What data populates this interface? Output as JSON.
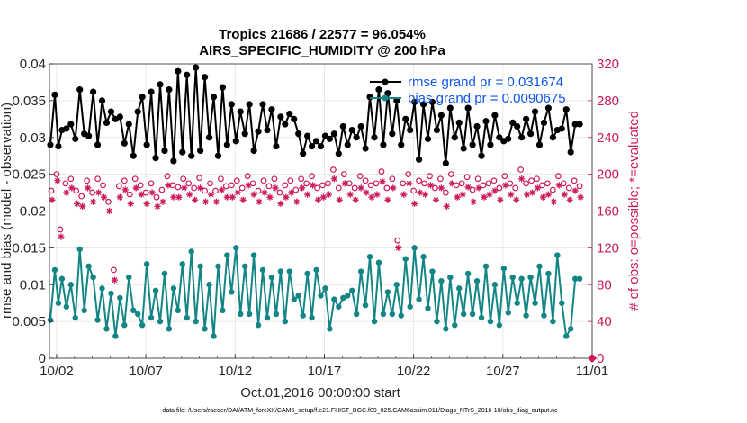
{
  "chart_data": {
    "type": "line",
    "title": "Tropics 21686 / 22577 = 96.054%",
    "subtitle": "AIRS_SPECIFIC_HUMIDITY @ 200 hPa",
    "xlabel": "Oct.01,2016 00:00:00 start",
    "ylabel": "rmse and bias (model - observation)",
    "ylabel_right": "# of obs: o=possible; *=evaluated",
    "xlim": [
      0.6,
      31.0
    ],
    "ylim": [
      0,
      0.04
    ],
    "ylim_right": [
      0,
      320
    ],
    "x_ticks": [
      1,
      6,
      11,
      16,
      21,
      26,
      31
    ],
    "x_tick_labels": [
      "10/02",
      "10/07",
      "10/12",
      "10/17",
      "10/22",
      "10/27",
      "11/01"
    ],
    "y_ticks": [
      0,
      0.005,
      0.01,
      0.015,
      0.02,
      0.025,
      0.03,
      0.035,
      0.04
    ],
    "y_tick_labels": [
      "0",
      "0.005",
      "0.01",
      "0.015",
      "0.02",
      "0.025",
      "0.03",
      "0.035",
      "0.04"
    ],
    "y_ticks_right": [
      0,
      40,
      80,
      120,
      160,
      200,
      240,
      280,
      320
    ],
    "y_tick_labels_right": [
      "0",
      "40",
      "80",
      "120",
      "160",
      "200",
      "240",
      "280",
      "320"
    ],
    "grid": true,
    "legend_position": "top-right",
    "series": [
      {
        "name": "rmse grand pr = 0.031674",
        "axis": "left",
        "color": "#000000",
        "marker": "hexagram",
        "x": [
          0.65,
          0.9,
          1.1,
          1.3,
          1.55,
          1.8,
          2.05,
          2.3,
          2.55,
          2.8,
          3.05,
          3.3,
          3.55,
          3.8,
          4.05,
          4.3,
          4.55,
          4.8,
          5.05,
          5.3,
          5.55,
          5.8,
          6.05,
          6.3,
          6.55,
          6.8,
          7.05,
          7.3,
          7.55,
          7.8,
          8.05,
          8.3,
          8.55,
          8.8,
          9.05,
          9.3,
          9.55,
          9.8,
          10.05,
          10.3,
          10.55,
          10.8,
          11.05,
          11.3,
          11.55,
          11.8,
          12.05,
          12.3,
          12.55,
          12.8,
          13.05,
          13.3,
          13.55,
          13.8,
          14.05,
          14.3,
          14.55,
          14.8,
          15.05,
          15.3,
          15.55,
          15.8,
          16.05,
          16.3,
          16.55,
          16.8,
          17.05,
          17.3,
          17.55,
          17.8,
          18.05,
          18.3,
          18.55,
          18.8,
          19.05,
          19.3,
          19.55,
          19.8,
          20.05,
          20.3,
          20.55,
          20.8,
          21.05,
          21.3,
          21.55,
          21.8,
          22.05,
          22.3,
          22.55,
          22.8,
          23.05,
          23.3,
          23.55,
          23.8,
          24.05,
          24.3,
          24.55,
          24.8,
          25.05,
          25.3,
          25.55,
          25.8,
          26.05,
          26.3,
          26.55,
          26.8,
          27.05,
          27.3,
          27.55,
          27.8,
          28.05,
          28.3,
          28.55,
          28.8,
          29.05,
          29.3,
          29.55,
          29.8,
          30.05,
          30.3
        ],
        "values": [
          0.029,
          0.0358,
          0.0288,
          0.031,
          0.0312,
          0.0318,
          0.0298,
          0.0365,
          0.0305,
          0.0302,
          0.0362,
          0.029,
          0.035,
          0.032,
          0.0335,
          0.0325,
          0.0328,
          0.0292,
          0.0318,
          0.0275,
          0.0335,
          0.0355,
          0.029,
          0.0362,
          0.0272,
          0.0372,
          0.0282,
          0.0365,
          0.0268,
          0.039,
          0.028,
          0.0385,
          0.0275,
          0.0395,
          0.0282,
          0.0382,
          0.03,
          0.0355,
          0.0275,
          0.0368,
          0.029,
          0.0345,
          0.0295,
          0.0335,
          0.0305,
          0.0345,
          0.0282,
          0.0308,
          0.0345,
          0.031,
          0.0338,
          0.0288,
          0.0328,
          0.0318,
          0.0332,
          0.0325,
          0.0305,
          0.0278,
          0.0302,
          0.0288,
          0.0295,
          0.0288,
          0.0302,
          0.0298,
          0.0305,
          0.0278,
          0.0315,
          0.029,
          0.031,
          0.03,
          0.0315,
          0.0285,
          0.0355,
          0.03,
          0.0365,
          0.029,
          0.036,
          0.0305,
          0.035,
          0.029,
          0.0325,
          0.031,
          0.0348,
          0.027,
          0.0345,
          0.0298,
          0.0348,
          0.031,
          0.033,
          0.0265,
          0.034,
          0.03,
          0.032,
          0.0285,
          0.034,
          0.029,
          0.0315,
          0.0275,
          0.0322,
          0.029,
          0.033,
          0.03,
          0.0295,
          0.0298,
          0.032,
          0.0315,
          0.03,
          0.0325,
          0.0305,
          0.0335,
          0.029,
          0.032,
          0.034,
          0.03,
          0.031,
          0.0312,
          0.0338,
          0.028,
          0.0318,
          0.0318
        ]
      },
      {
        "name": "bias grand pr = 0.0090675",
        "axis": "left",
        "color": "#138585",
        "marker": "circle",
        "x": [
          0.65,
          0.9,
          1.1,
          1.3,
          1.55,
          1.8,
          2.05,
          2.3,
          2.55,
          2.8,
          3.05,
          3.3,
          3.55,
          3.8,
          4.05,
          4.3,
          4.55,
          4.8,
          5.05,
          5.3,
          5.55,
          5.8,
          6.05,
          6.3,
          6.55,
          6.8,
          7.05,
          7.3,
          7.55,
          7.8,
          8.05,
          8.3,
          8.55,
          8.8,
          9.05,
          9.3,
          9.55,
          9.8,
          10.05,
          10.3,
          10.55,
          10.8,
          11.05,
          11.3,
          11.55,
          11.8,
          12.05,
          12.3,
          12.55,
          12.8,
          13.05,
          13.3,
          13.55,
          13.8,
          14.05,
          14.3,
          14.55,
          14.8,
          15.05,
          15.3,
          15.55,
          15.8,
          16.05,
          16.3,
          16.55,
          16.8,
          17.05,
          17.3,
          17.55,
          17.8,
          18.05,
          18.3,
          18.55,
          18.8,
          19.05,
          19.3,
          19.55,
          19.8,
          20.05,
          20.3,
          20.55,
          20.8,
          21.05,
          21.3,
          21.55,
          21.8,
          22.05,
          22.3,
          22.55,
          22.8,
          23.05,
          23.3,
          23.55,
          23.8,
          24.05,
          24.3,
          24.55,
          24.8,
          25.05,
          25.3,
          25.55,
          25.8,
          26.05,
          26.3,
          26.55,
          26.8,
          27.05,
          27.3,
          27.55,
          27.8,
          28.05,
          28.3,
          28.55,
          28.8,
          29.05,
          29.3,
          29.55,
          29.8,
          30.05,
          30.3
        ],
        "values": [
          0.0052,
          0.012,
          0.0075,
          0.0108,
          0.007,
          0.01,
          0.0055,
          0.0148,
          0.0065,
          0.0125,
          0.011,
          0.0052,
          0.0095,
          0.004,
          0.0088,
          0.003,
          0.0082,
          0.0045,
          0.011,
          0.0065,
          0.006,
          0.0045,
          0.0128,
          0.0055,
          0.0092,
          0.005,
          0.0115,
          0.004,
          0.0095,
          0.0065,
          0.0128,
          0.0055,
          0.0145,
          0.005,
          0.0125,
          0.004,
          0.01,
          0.003,
          0.0125,
          0.0065,
          0.014,
          0.009,
          0.015,
          0.006,
          0.0125,
          0.006,
          0.014,
          0.0045,
          0.012,
          0.0055,
          0.011,
          0.006,
          0.0118,
          0.005,
          0.0118,
          0.008,
          0.0085,
          0.0058,
          0.0115,
          0.0055,
          0.012,
          0.0085,
          0.0095,
          0.004,
          0.008,
          0.007,
          0.0082,
          0.0085,
          0.0092,
          0.006,
          0.0118,
          0.0072,
          0.0138,
          0.005,
          0.013,
          0.006,
          0.009,
          0.006,
          0.01,
          0.0058,
          0.0135,
          0.007,
          0.015,
          0.008,
          0.0138,
          0.0068,
          0.0118,
          0.005,
          0.0105,
          0.004,
          0.011,
          0.0045,
          0.0095,
          0.006,
          0.0115,
          0.006,
          0.0105,
          0.0055,
          0.0125,
          0.005,
          0.01,
          0.0045,
          0.0122,
          0.0062,
          0.011,
          0.0075,
          0.0108,
          0.0058,
          0.011,
          0.0075,
          0.0125,
          0.0058,
          0.0115,
          0.005,
          0.014,
          0.0075,
          0.003,
          0.004,
          0.0108,
          0.0108
        ]
      },
      {
        "name": "possible obs",
        "axis": "right",
        "color": "#cc1a5c",
        "marker": "open-circle",
        "x": [
          0.7,
          1.0,
          1.2,
          1.5,
          1.8,
          2.1,
          2.4,
          2.7,
          3.0,
          3.3,
          3.6,
          3.9,
          4.2,
          4.5,
          4.8,
          5.1,
          5.4,
          5.7,
          6.0,
          6.3,
          6.6,
          6.9,
          7.2,
          7.5,
          7.8,
          8.1,
          8.4,
          8.7,
          9.0,
          9.3,
          9.6,
          9.9,
          10.2,
          10.5,
          10.8,
          11.1,
          11.4,
          11.7,
          12.0,
          12.3,
          12.6,
          12.9,
          13.2,
          13.5,
          13.8,
          14.1,
          14.4,
          14.7,
          15.0,
          15.3,
          15.6,
          15.9,
          16.2,
          16.5,
          16.8,
          17.1,
          17.4,
          17.7,
          18.0,
          18.3,
          18.6,
          18.9,
          19.2,
          19.5,
          19.8,
          20.1,
          20.4,
          20.7,
          21.0,
          21.3,
          21.6,
          21.9,
          22.2,
          22.5,
          22.8,
          23.1,
          23.4,
          23.7,
          24.0,
          24.3,
          24.6,
          24.9,
          25.2,
          25.5,
          25.8,
          26.1,
          26.4,
          26.7,
          27.0,
          27.3,
          27.6,
          27.9,
          28.2,
          28.5,
          28.8,
          29.1,
          29.4,
          29.7,
          30.0,
          30.3
        ],
        "values": [
          182,
          200,
          140,
          190,
          195,
          182,
          176,
          193,
          180,
          195,
          188,
          170,
          96,
          187,
          193,
          178,
          195,
          188,
          180,
          190,
          175,
          183,
          198,
          188,
          186,
          195,
          190,
          185,
          196,
          182,
          190,
          182,
          195,
          187,
          188,
          193,
          185,
          198,
          190,
          182,
          193,
          187,
          195,
          180,
          188,
          193,
          183,
          195,
          190,
          198,
          185,
          188,
          190,
          205,
          185,
          200,
          190,
          185,
          198,
          193,
          188,
          190,
          203,
          185,
          195,
          128,
          190,
          200,
          182,
          193,
          190,
          198,
          185,
          195,
          180,
          200,
          188,
          190,
          197,
          183,
          195,
          188,
          190,
          193,
          185,
          198,
          190,
          185,
          205,
          190,
          193,
          195,
          188,
          190,
          183,
          198,
          190,
          185,
          193,
          187
        ]
      },
      {
        "name": "evaluated obs",
        "axis": "right",
        "color": "#cc1a5c",
        "marker": "asterisk",
        "x": [
          0.75,
          1.05,
          1.25,
          1.55,
          1.85,
          2.15,
          2.45,
          2.75,
          3.05,
          3.35,
          3.65,
          3.95,
          4.25,
          4.55,
          4.85,
          5.15,
          5.45,
          5.75,
          6.05,
          6.35,
          6.65,
          6.95,
          7.25,
          7.55,
          7.85,
          8.15,
          8.45,
          8.75,
          9.05,
          9.35,
          9.65,
          9.95,
          10.25,
          10.55,
          10.85,
          11.15,
          11.45,
          11.75,
          12.05,
          12.35,
          12.65,
          12.95,
          13.25,
          13.55,
          13.85,
          14.15,
          14.45,
          14.75,
          15.05,
          15.35,
          15.65,
          15.95,
          16.25,
          16.55,
          16.85,
          17.15,
          17.45,
          17.75,
          18.05,
          18.35,
          18.65,
          18.95,
          19.25,
          19.55,
          19.85,
          20.15,
          20.45,
          20.75,
          21.05,
          21.35,
          21.65,
          21.95,
          22.25,
          22.55,
          22.85,
          23.15,
          23.45,
          23.75,
          24.05,
          24.35,
          24.65,
          24.95,
          25.25,
          25.55,
          25.85,
          26.15,
          26.45,
          26.75,
          27.05,
          27.35,
          27.65,
          27.95,
          28.25,
          28.55,
          28.85,
          29.15,
          29.45,
          29.75,
          30.05,
          30.35
        ],
        "values": [
          172,
          193,
          132,
          180,
          185,
          168,
          165,
          185,
          170,
          180,
          175,
          160,
          85,
          175,
          183,
          168,
          185,
          178,
          168,
          180,
          165,
          170,
          188,
          175,
          175,
          185,
          178,
          172,
          185,
          170,
          178,
          170,
          183,
          175,
          175,
          180,
          172,
          188,
          178,
          170,
          180,
          175,
          185,
          168,
          175,
          180,
          170,
          185,
          178,
          188,
          172,
          175,
          178,
          195,
          172,
          190,
          178,
          172,
          185,
          180,
          175,
          178,
          192,
          172,
          185,
          120,
          178,
          190,
          168,
          180,
          178,
          188,
          172,
          185,
          165,
          190,
          175,
          178,
          186,
          170,
          185,
          175,
          178,
          182,
          172,
          188,
          178,
          172,
          195,
          178,
          180,
          185,
          175,
          178,
          170,
          188,
          178,
          172,
          182,
          175
        ]
      }
    ],
    "footer": "data file: /Users/raeder/DAI/ATM_forcXX/CAM6_setup/f.e21.FHIST_BGC.f09_025.CAM6assim.011/Diags_NTrS_2016-10/obs_diag_output.nc"
  }
}
